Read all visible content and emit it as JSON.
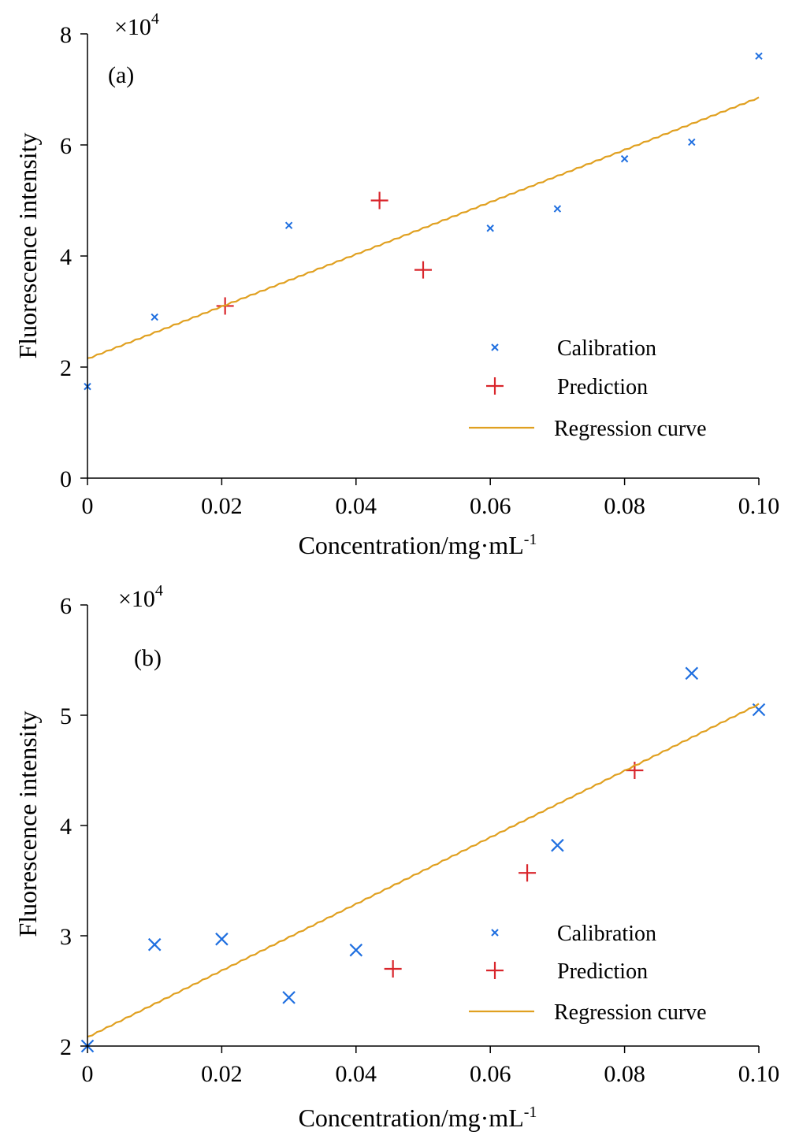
{
  "colors": {
    "calibration": "#1f6fe0",
    "prediction": "#d9262c",
    "regression": "#e0a020",
    "axis": "#000000"
  },
  "legend": {
    "calibration": "Calibration",
    "prediction": "Prediction",
    "regression": "Regression curve"
  },
  "chart_data": [
    {
      "type": "scatter",
      "panel_label": "(a)",
      "xlabel": "Concentration/mg·mL",
      "xlabel_sup": "-1",
      "ylabel": "Fluorescence intensity",
      "y_multiplier": "×10",
      "y_multiplier_sup": "4",
      "xlim": [
        0,
        0.1
      ],
      "ylim": [
        0,
        8
      ],
      "x_ticks": [
        0,
        0.02,
        0.04,
        0.06,
        0.08,
        0.1
      ],
      "x_tick_labels": [
        "0",
        "0.02",
        "0.04",
        "0.06",
        "0.08",
        "0.10"
      ],
      "y_ticks": [
        0,
        2,
        4,
        6,
        8
      ],
      "y_tick_labels": [
        "0",
        "2",
        "4",
        "6",
        "8"
      ],
      "legend_position": "bottom-right",
      "series": [
        {
          "name": "Calibration",
          "marker": "x-small",
          "x": [
            0,
            0.01,
            0.03,
            0.06,
            0.07,
            0.08,
            0.09,
            0.1
          ],
          "y": [
            1.65,
            2.9,
            4.55,
            4.5,
            4.85,
            5.75,
            6.05,
            7.6
          ]
        },
        {
          "name": "Prediction",
          "marker": "plus",
          "x": [
            0.0205,
            0.0435,
            0.05
          ],
          "y": [
            3.1,
            5.0,
            3.75
          ]
        },
        {
          "name": "Regression curve",
          "marker": "line",
          "x": [
            0,
            0.1
          ],
          "y": [
            2.15,
            6.85
          ]
        }
      ]
    },
    {
      "type": "scatter",
      "panel_label": "(b)",
      "xlabel": "Concentration/mg·mL",
      "xlabel_sup": "-1",
      "ylabel": "Fluorescence intensity",
      "y_multiplier": "×10",
      "y_multiplier_sup": "4",
      "xlim": [
        0,
        0.1
      ],
      "ylim": [
        2,
        6
      ],
      "x_ticks": [
        0,
        0.02,
        0.04,
        0.06,
        0.08,
        0.1
      ],
      "x_tick_labels": [
        "0",
        "0.02",
        "0.04",
        "0.06",
        "0.08",
        "0.10"
      ],
      "y_ticks": [
        2,
        3,
        4,
        5,
        6
      ],
      "y_tick_labels": [
        "2",
        "3",
        "4",
        "5",
        "6"
      ],
      "legend_position": "bottom-right",
      "series": [
        {
          "name": "Calibration",
          "marker": "x-large",
          "x": [
            0,
            0.01,
            0.02,
            0.03,
            0.04,
            0.07,
            0.09,
            0.1
          ],
          "y": [
            2.0,
            2.92,
            2.97,
            2.44,
            2.87,
            3.82,
            5.38,
            5.05
          ]
        },
        {
          "name": "Prediction",
          "marker": "plus",
          "x": [
            0.0455,
            0.0655,
            0.0815
          ],
          "y": [
            2.7,
            3.57,
            4.5
          ]
        },
        {
          "name": "Regression curve",
          "marker": "line",
          "x": [
            0,
            0.1
          ],
          "y": [
            2.08,
            5.1
          ]
        }
      ]
    }
  ]
}
